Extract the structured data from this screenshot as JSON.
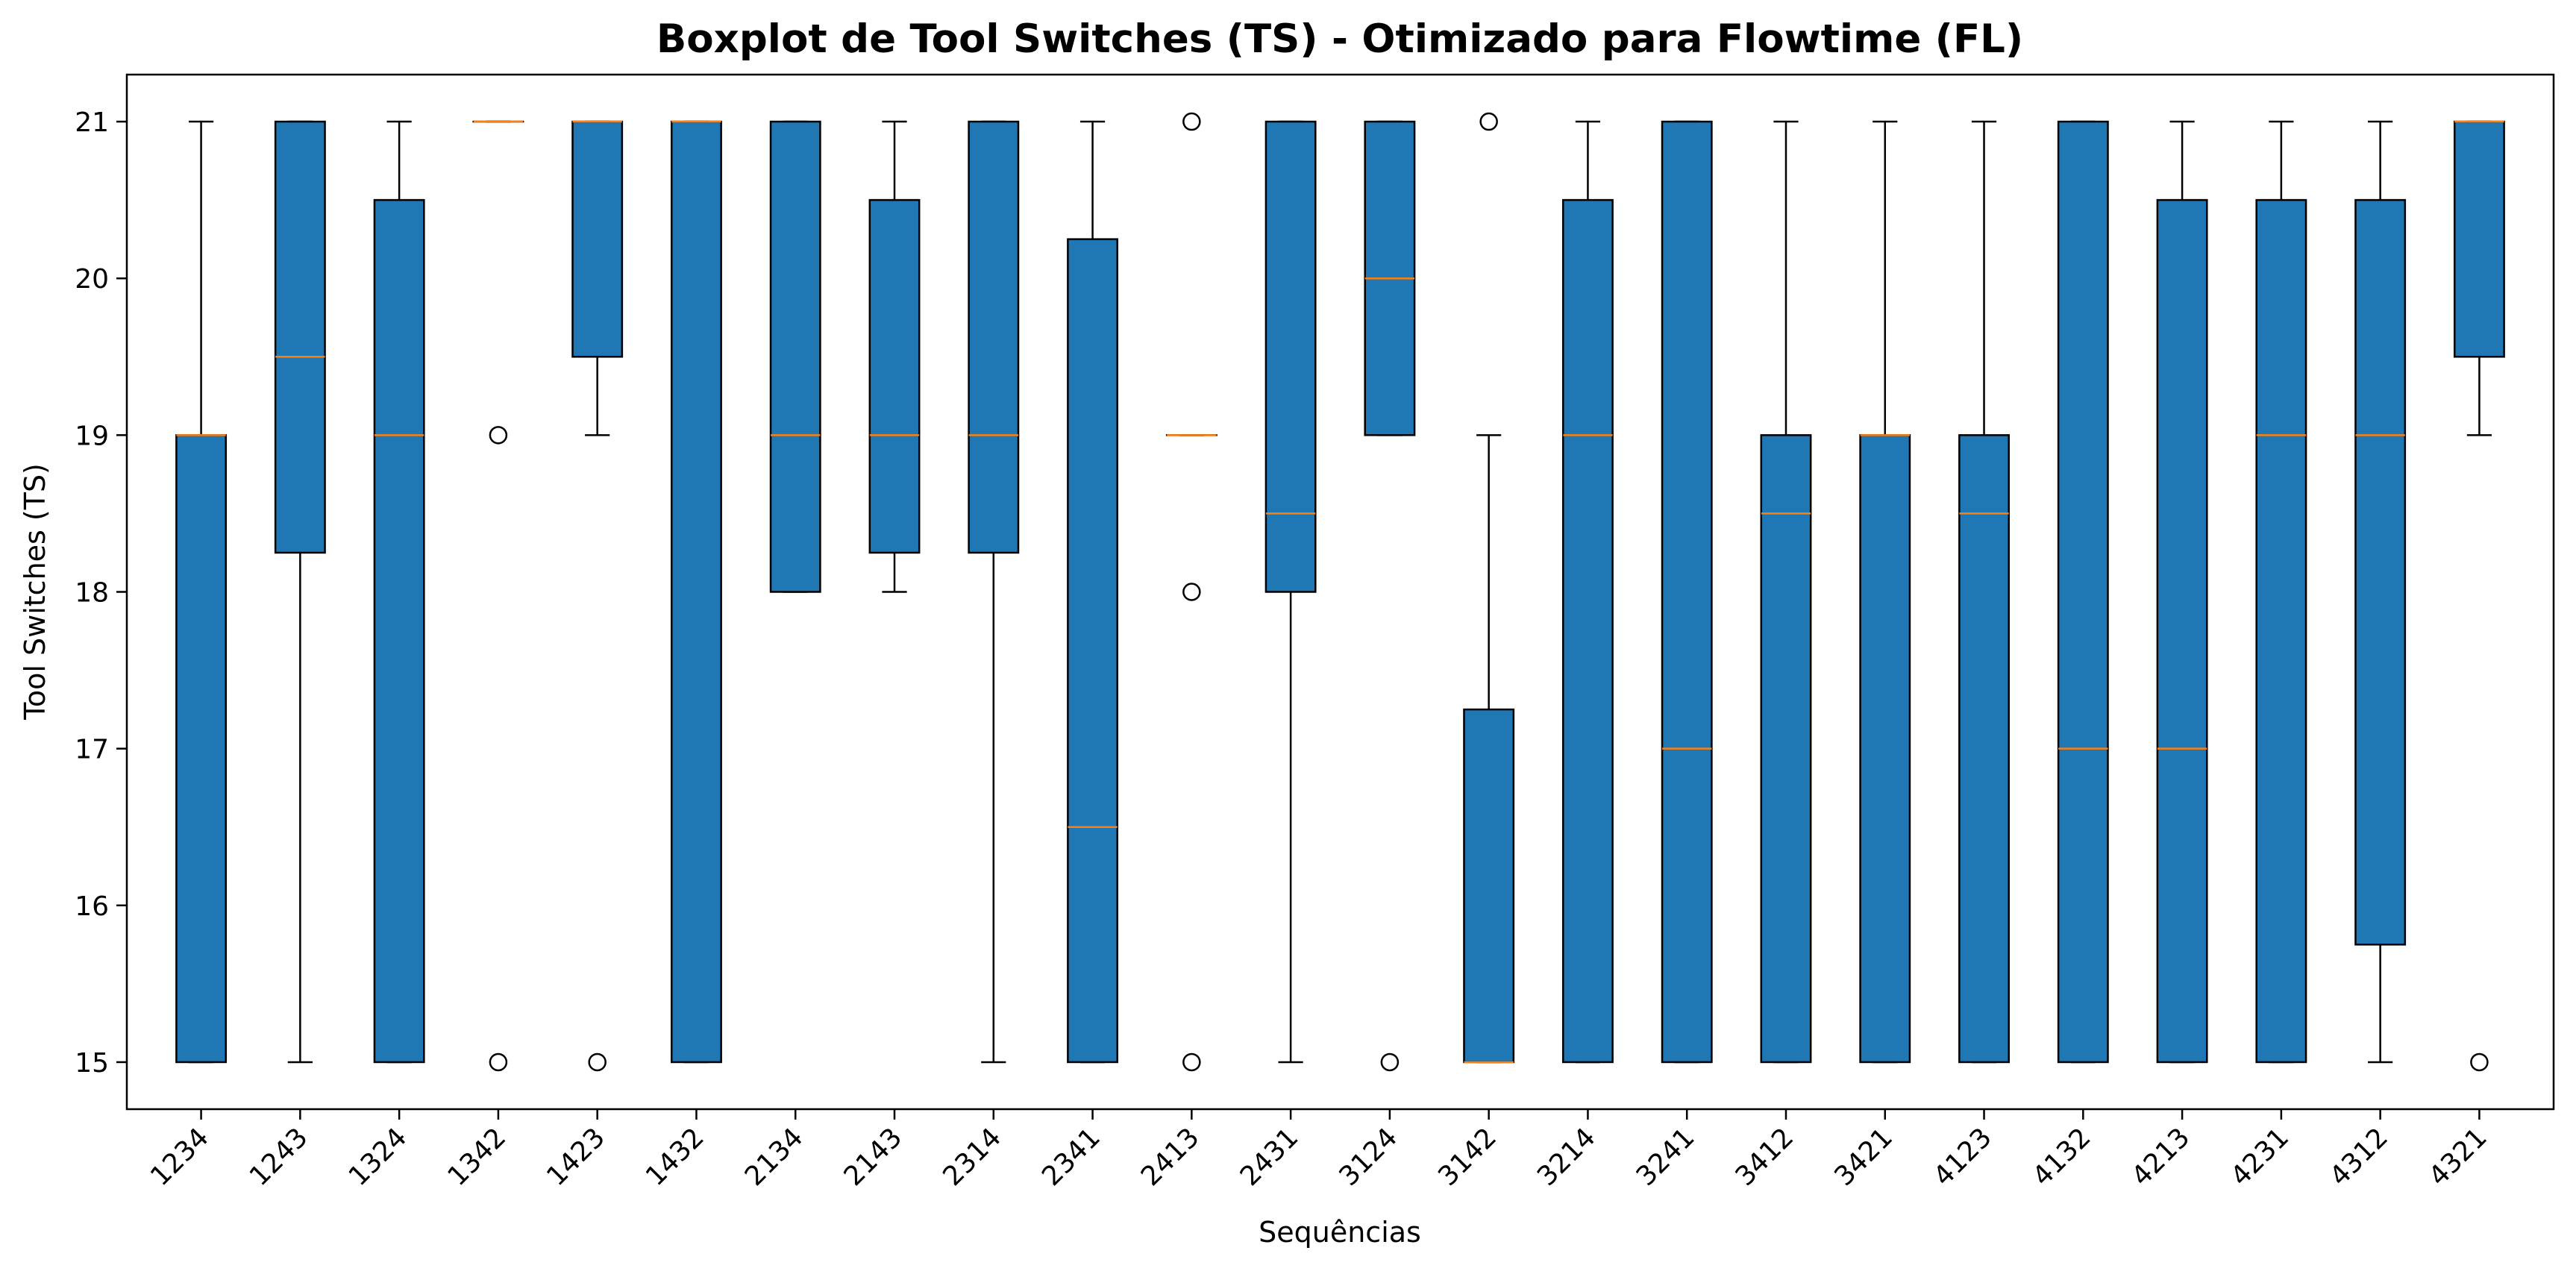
{
  "chart_data": {
    "type": "boxplot",
    "title": "Boxplot de Tool Switches (TS) - Otimizado para Flowtime (FL)",
    "xlabel": "Sequências",
    "ylabel": "Tool Switches (TS)",
    "ylim": [
      14.7,
      21.3
    ],
    "yticks": [
      15,
      16,
      17,
      18,
      19,
      20,
      21
    ],
    "grid": false,
    "colors": {
      "box": "#1f77b4",
      "median": "#ff7f0e",
      "line": "#000000"
    },
    "boxes": [
      {
        "label": "1234",
        "whislo": 15,
        "q1": 15,
        "med": 19,
        "q3": 19,
        "whishi": 21,
        "fliers": []
      },
      {
        "label": "1243",
        "whislo": 15,
        "q1": 18.25,
        "med": 19.5,
        "q3": 21,
        "whishi": 21,
        "fliers": []
      },
      {
        "label": "1324",
        "whislo": 15,
        "q1": 15,
        "med": 19,
        "q3": 20.5,
        "whishi": 21,
        "fliers": []
      },
      {
        "label": "1342",
        "whislo": 21,
        "q1": 21,
        "med": 21,
        "q3": 21,
        "whishi": 21,
        "fliers": [
          19,
          15
        ]
      },
      {
        "label": "1423",
        "whislo": 19,
        "q1": 19.5,
        "med": 21,
        "q3": 21,
        "whishi": 21,
        "fliers": [
          15
        ]
      },
      {
        "label": "1432",
        "whislo": 15,
        "q1": 15,
        "med": 21,
        "q3": 21,
        "whishi": 21,
        "fliers": []
      },
      {
        "label": "2134",
        "whislo": 18,
        "q1": 18,
        "med": 19,
        "q3": 21,
        "whishi": 21,
        "fliers": []
      },
      {
        "label": "2143",
        "whislo": 18,
        "q1": 18.25,
        "med": 19,
        "q3": 20.5,
        "whishi": 21,
        "fliers": []
      },
      {
        "label": "2314",
        "whislo": 15,
        "q1": 18.25,
        "med": 19,
        "q3": 21,
        "whishi": 21,
        "fliers": []
      },
      {
        "label": "2341",
        "whislo": 15,
        "q1": 15,
        "med": 16.5,
        "q3": 20.25,
        "whishi": 21,
        "fliers": []
      },
      {
        "label": "2413",
        "whislo": 19,
        "q1": 19,
        "med": 19,
        "q3": 19,
        "whishi": 19,
        "fliers": [
          21,
          18,
          15
        ]
      },
      {
        "label": "2431",
        "whislo": 15,
        "q1": 18,
        "med": 18.5,
        "q3": 21,
        "whishi": 21,
        "fliers": []
      },
      {
        "label": "3124",
        "whislo": 19,
        "q1": 19,
        "med": 20,
        "q3": 21,
        "whishi": 21,
        "fliers": [
          15
        ]
      },
      {
        "label": "3142",
        "whislo": 15,
        "q1": 15,
        "med": 15,
        "q3": 17.25,
        "whishi": 19,
        "fliers": [
          21
        ]
      },
      {
        "label": "3214",
        "whislo": 15,
        "q1": 15,
        "med": 19,
        "q3": 20.5,
        "whishi": 21,
        "fliers": []
      },
      {
        "label": "3241",
        "whislo": 15,
        "q1": 15,
        "med": 17,
        "q3": 21,
        "whishi": 21,
        "fliers": []
      },
      {
        "label": "3412",
        "whislo": 15,
        "q1": 15,
        "med": 18.5,
        "q3": 19,
        "whishi": 21,
        "fliers": []
      },
      {
        "label": "3421",
        "whislo": 15,
        "q1": 15,
        "med": 19,
        "q3": 19,
        "whishi": 21,
        "fliers": []
      },
      {
        "label": "4123",
        "whislo": 15,
        "q1": 15,
        "med": 18.5,
        "q3": 19,
        "whishi": 21,
        "fliers": []
      },
      {
        "label": "4132",
        "whislo": 15,
        "q1": 15,
        "med": 17,
        "q3": 21,
        "whishi": 21,
        "fliers": []
      },
      {
        "label": "4213",
        "whislo": 15,
        "q1": 15,
        "med": 17,
        "q3": 20.5,
        "whishi": 21,
        "fliers": []
      },
      {
        "label": "4231",
        "whislo": 15,
        "q1": 15,
        "med": 19,
        "q3": 20.5,
        "whishi": 21,
        "fliers": []
      },
      {
        "label": "4312",
        "whislo": 15,
        "q1": 15.75,
        "med": 19,
        "q3": 20.5,
        "whishi": 21,
        "fliers": []
      },
      {
        "label": "4321",
        "whislo": 19,
        "q1": 19.5,
        "med": 21,
        "q3": 21,
        "whishi": 21,
        "fliers": [
          15
        ]
      }
    ]
  }
}
